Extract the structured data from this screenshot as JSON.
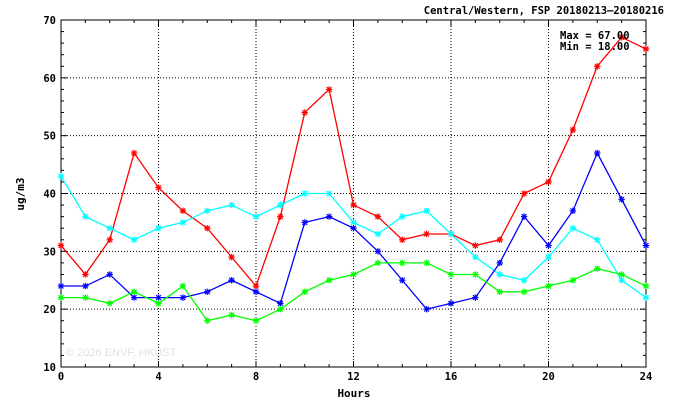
{
  "chart_data": {
    "type": "line",
    "title": "Central/Western, FSP 20180213–20180216",
    "xlabel": "Hours",
    "ylabel": "ug/m3",
    "xlim": [
      0,
      24
    ],
    "ylim": [
      10,
      70
    ],
    "x_ticks": [
      0,
      4,
      8,
      12,
      16,
      20,
      24
    ],
    "y_ticks": [
      10,
      20,
      30,
      40,
      50,
      60,
      70
    ],
    "grid": true,
    "annotations": {
      "max": "Max = 67.00",
      "min": "Min = 18.00"
    },
    "watermark": "© 2026  ENVF, HKUST",
    "x": [
      0,
      1,
      2,
      3,
      4,
      5,
      6,
      7,
      8,
      9,
      10,
      11,
      12,
      13,
      14,
      15,
      16,
      17,
      18,
      19,
      20,
      21,
      22,
      23,
      24
    ],
    "series": [
      {
        "color": "#ff0000",
        "values": [
          31,
          26,
          32,
          47,
          41,
          37,
          34,
          29,
          24,
          36,
          54,
          58,
          38,
          36,
          32,
          33,
          33,
          31,
          32,
          40,
          42,
          51,
          62,
          67,
          65
        ]
      },
      {
        "color": "#00ffff",
        "values": [
          43,
          36,
          34,
          32,
          34,
          35,
          37,
          38,
          36,
          38,
          40,
          40,
          35,
          33,
          36,
          37,
          33,
          29,
          26,
          25,
          29,
          34,
          32,
          25,
          22
        ]
      },
      {
        "color": "#0000ff",
        "values": [
          24,
          24,
          26,
          22,
          22,
          22,
          23,
          25,
          23,
          21,
          35,
          36,
          34,
          30,
          25,
          20,
          21,
          22,
          28,
          36,
          31,
          37,
          47,
          39,
          31
        ]
      },
      {
        "color": "#00ff00",
        "values": [
          22,
          22,
          21,
          23,
          21,
          24,
          18,
          19,
          18,
          20,
          23,
          25,
          26,
          28,
          28,
          28,
          26,
          26,
          23,
          23,
          24,
          25,
          27,
          26,
          24
        ]
      }
    ]
  }
}
